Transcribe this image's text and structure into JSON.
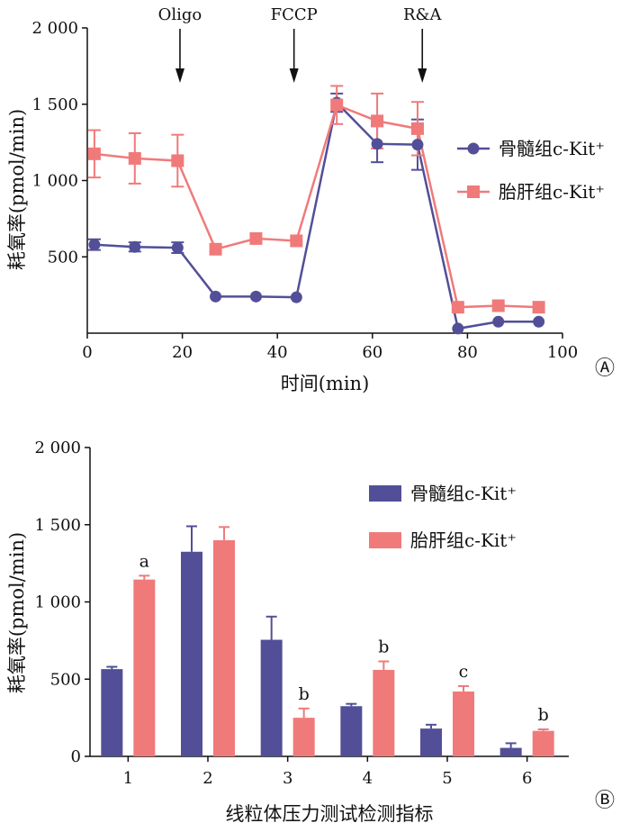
{
  "colors": {
    "bone_marrow": "#524f98",
    "fetal_liver": "#f07a7a",
    "axis": "#111111"
  },
  "chart_data": [
    {
      "type": "line",
      "panel_label": "Ⓐ",
      "xlabel": "时间(min)",
      "ylabel": "耗氧率(pmol/min)",
      "xlim": [
        0,
        100
      ],
      "ylim": [
        0,
        2000
      ],
      "xticks": [
        0,
        20,
        40,
        60,
        80,
        100
      ],
      "xtick_labels": [
        "0",
        "20",
        "40",
        "60",
        "80",
        "100"
      ],
      "yticks": [
        500,
        1000,
        1500,
        2000
      ],
      "ytick_labels": [
        "500",
        "1 000",
        "1 500",
        "2 000"
      ],
      "grid": false,
      "legend_position": "right",
      "injections": [
        {
          "label": "Oligo",
          "x": 19.5
        },
        {
          "label": "FCCP",
          "x": 43.5
        },
        {
          "label": "R&A",
          "x": 70.5
        }
      ],
      "series": [
        {
          "name": "骨髓组c-Kit⁺",
          "marker": "circle",
          "x": [
            1.5,
            10,
            19,
            27,
            35.5,
            44,
            52.5,
            61,
            69.5,
            78,
            86.5,
            95
          ],
          "y": [
            580,
            565,
            560,
            240,
            240,
            235,
            1510,
            1240,
            1235,
            30,
            75,
            75
          ],
          "error": [
            35,
            30,
            35,
            0,
            0,
            0,
            60,
            120,
            165,
            0,
            0,
            0
          ]
        },
        {
          "name": "胎肝组c-Kit⁺",
          "marker": "square",
          "x": [
            1.5,
            10,
            19,
            27,
            35.5,
            44,
            52.5,
            61,
            69.5,
            78,
            86.5,
            95
          ],
          "y": [
            1175,
            1145,
            1130,
            550,
            620,
            605,
            1495,
            1390,
            1340,
            170,
            180,
            170
          ],
          "error": [
            155,
            165,
            170,
            0,
            0,
            0,
            125,
            180,
            175,
            0,
            0,
            0
          ]
        }
      ]
    },
    {
      "type": "bar",
      "panel_label": "Ⓑ",
      "xlabel": "线粒体压力测试检测指标",
      "ylabel": "耗氧率(pmol/min)",
      "ylim": [
        0,
        2000
      ],
      "categories": [
        "1",
        "2",
        "3",
        "4",
        "5",
        "6"
      ],
      "yticks": [
        0,
        500,
        1000,
        1500,
        2000
      ],
      "ytick_labels": [
        "0",
        "500",
        "1 000",
        "1 500",
        "2 000"
      ],
      "grid": false,
      "legend_position": "top-right",
      "series": [
        {
          "name": "骨髓组c-Kit⁺",
          "values": [
            565,
            1325,
            755,
            325,
            180,
            55
          ],
          "error": [
            15,
            165,
            150,
            15,
            25,
            30
          ],
          "annotations": [
            "",
            "",
            "",
            "",
            "",
            ""
          ]
        },
        {
          "name": "胎肝组c-Kit⁺",
          "values": [
            1145,
            1400,
            250,
            560,
            420,
            165
          ],
          "error": [
            25,
            85,
            60,
            55,
            35,
            10
          ],
          "annotations": [
            "a",
            "",
            "b",
            "b",
            "c",
            "b"
          ]
        }
      ]
    }
  ]
}
